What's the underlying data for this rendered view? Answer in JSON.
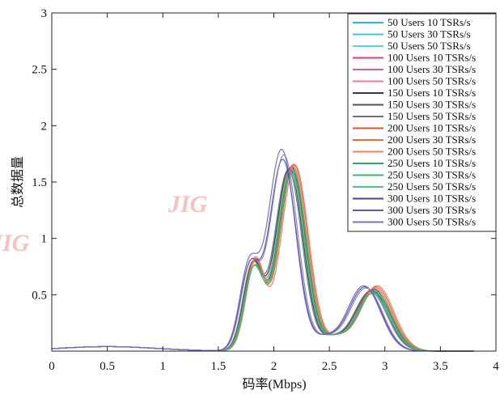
{
  "chart_data": {
    "type": "line",
    "title": "",
    "xlabel": "码率(Mbps)",
    "ylabel": "总数据量",
    "xlim": [
      0,
      4
    ],
    "ylim": [
      0,
      3
    ],
    "xticks": [
      0,
      0.5,
      1,
      1.5,
      2,
      2.5,
      3,
      3.5,
      4
    ],
    "xtick_labels": [
      "0",
      "0.5",
      "1",
      "1.5",
      "2",
      "2.5",
      "3",
      "3.5",
      "4"
    ],
    "yticks": [
      0.5,
      1,
      1.5,
      2,
      2.5,
      3
    ],
    "ytick_labels": [
      "0.5",
      "1",
      "1.5",
      "2",
      "2.5",
      "3"
    ],
    "grid": false,
    "legend_position": "top-right",
    "watermark": "JIG",
    "series": [
      {
        "name": "50 Users 10 TSRs/s",
        "color": "#1fb8e8",
        "peak1": 0.74,
        "peak2": 1.62,
        "peak3": 0.53,
        "shift": 0.0
      },
      {
        "name": "50 Users 30 TSRs/s",
        "color": "#3ec6ea",
        "peak1": 0.75,
        "peak2": 1.63,
        "peak3": 0.54,
        "shift": 0.01
      },
      {
        "name": "50 Users 50 TSRs/s",
        "color": "#5fcfee",
        "peak1": 0.73,
        "peak2": 1.61,
        "peak3": 0.52,
        "shift": -0.01
      },
      {
        "name": "100 Users 10 TSRs/s",
        "color": "#d9407a",
        "peak1": 0.77,
        "peak2": 1.64,
        "peak3": 0.55,
        "shift": 0.02
      },
      {
        "name": "100 Users 30 TSRs/s",
        "color": "#e15a8c",
        "peak1": 0.78,
        "peak2": 1.65,
        "peak3": 0.56,
        "shift": 0.03
      },
      {
        "name": "100 Users 50 TSRs/s",
        "color": "#e87aa4",
        "peak1": 0.76,
        "peak2": 1.63,
        "peak3": 0.55,
        "shift": 0.01
      },
      {
        "name": "150 Users 10 TSRs/s",
        "color": "#3a3a3a",
        "peak1": 0.75,
        "peak2": 1.62,
        "peak3": 0.54,
        "shift": 0.0
      },
      {
        "name": "150 Users 30 TSRs/s",
        "color": "#555555",
        "peak1": 0.76,
        "peak2": 1.63,
        "peak3": 0.55,
        "shift": 0.02
      },
      {
        "name": "150 Users 50 TSRs/s",
        "color": "#707070",
        "peak1": 0.74,
        "peak2": 1.61,
        "peak3": 0.53,
        "shift": -0.01
      },
      {
        "name": "200 Users 10 TSRs/s",
        "color": "#e8502c",
        "peak1": 0.8,
        "peak2": 1.66,
        "peak3": 0.57,
        "shift": 0.04
      },
      {
        "name": "200 Users 30 TSRs/s",
        "color": "#ec6a3e",
        "peak1": 0.79,
        "peak2": 1.65,
        "peak3": 0.58,
        "shift": 0.05
      },
      {
        "name": "200 Users 50 TSRs/s",
        "color": "#f08450",
        "peak1": 0.78,
        "peak2": 1.64,
        "peak3": 0.56,
        "shift": 0.03
      },
      {
        "name": "250 Users 10 TSRs/s",
        "color": "#2ca862",
        "peak1": 0.72,
        "peak2": 1.6,
        "peak3": 0.52,
        "shift": 0.02
      },
      {
        "name": "250 Users 30 TSRs/s",
        "color": "#3db470",
        "peak1": 0.73,
        "peak2": 1.61,
        "peak3": 0.53,
        "shift": 0.03
      },
      {
        "name": "250 Users 50 TSRs/s",
        "color": "#56c184",
        "peak1": 0.71,
        "peak2": 1.59,
        "peak3": 0.51,
        "shift": 0.01
      },
      {
        "name": "300 Users 10 TSRs/s",
        "color": "#4a3fa0",
        "peak1": 0.7,
        "peak2": 1.7,
        "peak3": 0.57,
        "shift": -0.06
      },
      {
        "name": "300 Users 30 TSRs/s",
        "color": "#6258b4",
        "peak1": 0.72,
        "peak2": 1.79,
        "peak3": 0.58,
        "shift": -0.07
      },
      {
        "name": "300 Users 50 TSRs/s",
        "color": "#7a70c6",
        "peak1": 0.71,
        "peak2": 1.74,
        "peak3": 0.56,
        "shift": -0.05
      }
    ]
  }
}
